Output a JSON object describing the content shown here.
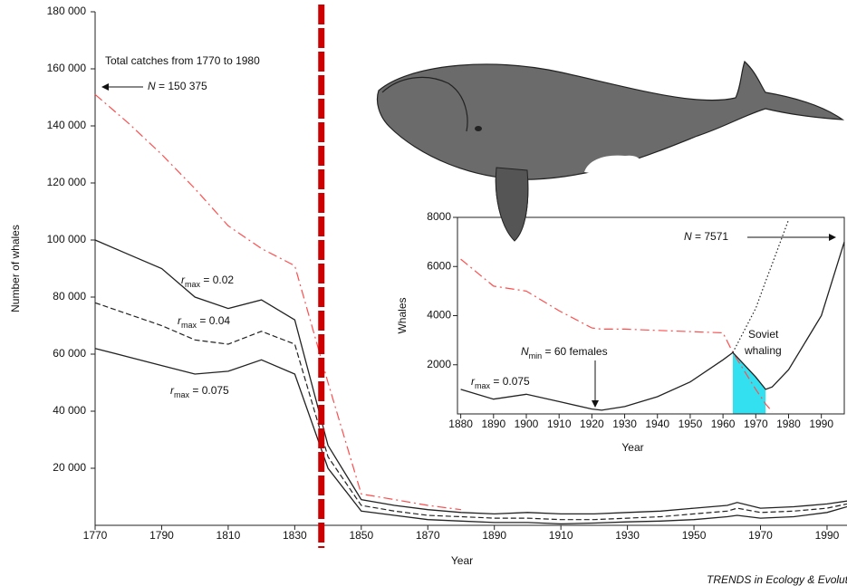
{
  "chart_data": [
    {
      "type": "line",
      "x_label": "Year",
      "y_label": "Number of whales",
      "xlim": [
        1770,
        1996
      ],
      "ylim": [
        0,
        180000
      ],
      "xticks": [
        1770,
        1790,
        1810,
        1830,
        1850,
        1870,
        1890,
        1910,
        1930,
        1950,
        1970,
        1990
      ],
      "yticks": [
        {
          "value": 20000,
          "label": "20 000"
        },
        {
          "value": 40000,
          "label": "40 000"
        },
        {
          "value": 60000,
          "label": "60 000"
        },
        {
          "value": 80000,
          "label": "80 000"
        },
        {
          "value": 100000,
          "label": "100 000"
        },
        {
          "value": 120000,
          "label": "120 000"
        },
        {
          "value": 140000,
          "label": "140 000"
        },
        {
          "value": 160000,
          "label": "160 000"
        },
        {
          "value": 180000,
          "label": "180 000"
        }
      ],
      "x": [
        1770,
        1780,
        1790,
        1800,
        1810,
        1820,
        1830,
        1840,
        1850,
        1860,
        1870,
        1880,
        1890,
        1900,
        1910,
        1920,
        1930,
        1940,
        1950,
        1960,
        1963,
        1970,
        1980,
        1990,
        1996
      ],
      "series": [
        {
          "color": "#ff4d4d",
          "dash": "dashdot",
          "values": [
            151000,
            141000,
            130000,
            118000,
            105000,
            97000,
            91000,
            50000,
            11000,
            9000,
            7000,
            5500,
            null,
            null,
            null,
            null,
            null,
            null,
            null,
            null,
            null,
            null,
            null,
            null,
            null
          ]
        },
        {
          "color": "#222222",
          "dash": "solid",
          "values": [
            100000,
            95000,
            90000,
            80000,
            76000,
            79000,
            72000,
            28000,
            9000,
            7000,
            5500,
            4500,
            4000,
            4500,
            4000,
            4000,
            4500,
            5000,
            6000,
            7000,
            8000,
            6000,
            6500,
            7500,
            8500
          ]
        },
        {
          "color": "#222222",
          "dash": "dashed",
          "values": [
            78000,
            74000,
            70000,
            65000,
            63500,
            68000,
            63500,
            24000,
            7000,
            5000,
            3500,
            3000,
            2500,
            2500,
            2000,
            2000,
            2500,
            3000,
            4000,
            5000,
            6000,
            4500,
            5000,
            6000,
            7500
          ]
        },
        {
          "color": "#222222",
          "dash": "solid",
          "values": [
            62000,
            59000,
            56000,
            53000,
            54000,
            58000,
            53000,
            20000,
            5000,
            3500,
            2000,
            1500,
            1000,
            1000,
            500,
            800,
            1200,
            1500,
            2000,
            3000,
            3500,
            2500,
            3000,
            4500,
            6500
          ]
        }
      ],
      "vline": {
        "x": 1838,
        "color": "#cc0000"
      },
      "annotations": [
        {
          "parts": [
            {
              "t": "Total catches from 1770 to 1980"
            }
          ]
        },
        {
          "parts": [
            {
              "t": "N",
              "i": true
            },
            {
              "t": " = 150 375"
            }
          ]
        },
        {
          "parts": [
            {
              "t": "r",
              "i": true
            },
            {
              "t": "max",
              "sub": true
            },
            {
              "t": " = 0.02"
            }
          ]
        },
        {
          "parts": [
            {
              "t": "r",
              "i": true
            },
            {
              "t": "max",
              "sub": true
            },
            {
              "t": " = 0.04"
            }
          ]
        },
        {
          "parts": [
            {
              "t": "r",
              "i": true
            },
            {
              "t": "max",
              "sub": true
            },
            {
              "t": " = 0.075"
            }
          ]
        }
      ],
      "footer": "TRENDS in Ecology & Evolution"
    },
    {
      "type": "line",
      "x_label": "Year",
      "y_label": "Whales",
      "xlim": [
        1879,
        1997
      ],
      "ylim": [
        0,
        8000
      ],
      "xticks": [
        1880,
        1890,
        1900,
        1910,
        1920,
        1930,
        1940,
        1950,
        1960,
        1970,
        1980,
        1990
      ],
      "yticks": [
        2000,
        4000,
        6000,
        8000
      ],
      "x": [
        1880,
        1890,
        1900,
        1910,
        1920,
        1923,
        1930,
        1940,
        1950,
        1960,
        1963,
        1970,
        1973,
        1975,
        1980,
        1990,
        1997
      ],
      "series": [
        {
          "color": "#ff4d4d",
          "dash": "dashdot",
          "values": [
            6300,
            5200,
            5000,
            4200,
            3500,
            3450,
            3450,
            3400,
            3350,
            3300,
            2500,
            1000,
            400,
            100,
            null,
            null,
            null
          ]
        },
        {
          "color": "#222222",
          "dash": "dotted",
          "values": [
            null,
            null,
            null,
            null,
            null,
            null,
            null,
            null,
            null,
            null,
            2500,
            4300,
            5400,
            6100,
            7900,
            null,
            null
          ]
        },
        {
          "color": "#222222",
          "dash": "solid",
          "values": [
            1000,
            600,
            800,
            500,
            200,
            150,
            300,
            700,
            1300,
            2200,
            2500,
            1500,
            1000,
            1100,
            1800,
            4000,
            7000
          ]
        }
      ],
      "shade": {
        "range": [
          1963,
          1973
        ],
        "color": "#33e0f0"
      },
      "annotations": [
        {
          "parts": [
            {
              "t": "r",
              "i": true
            },
            {
              "t": "max",
              "sub": true
            },
            {
              "t": " = 0.075"
            }
          ]
        },
        {
          "parts": [
            {
              "t": "N",
              "i": true
            },
            {
              "t": "min",
              "sub": true
            },
            {
              "t": " = 60 females"
            }
          ]
        },
        {
          "parts": [
            {
              "t": "N",
              "i": true
            },
            {
              "t": " = 7571"
            }
          ]
        },
        {
          "parts": [
            {
              "t": "Soviet"
            }
          ]
        },
        {
          "parts": [
            {
              "t": "whaling"
            }
          ]
        }
      ]
    }
  ]
}
